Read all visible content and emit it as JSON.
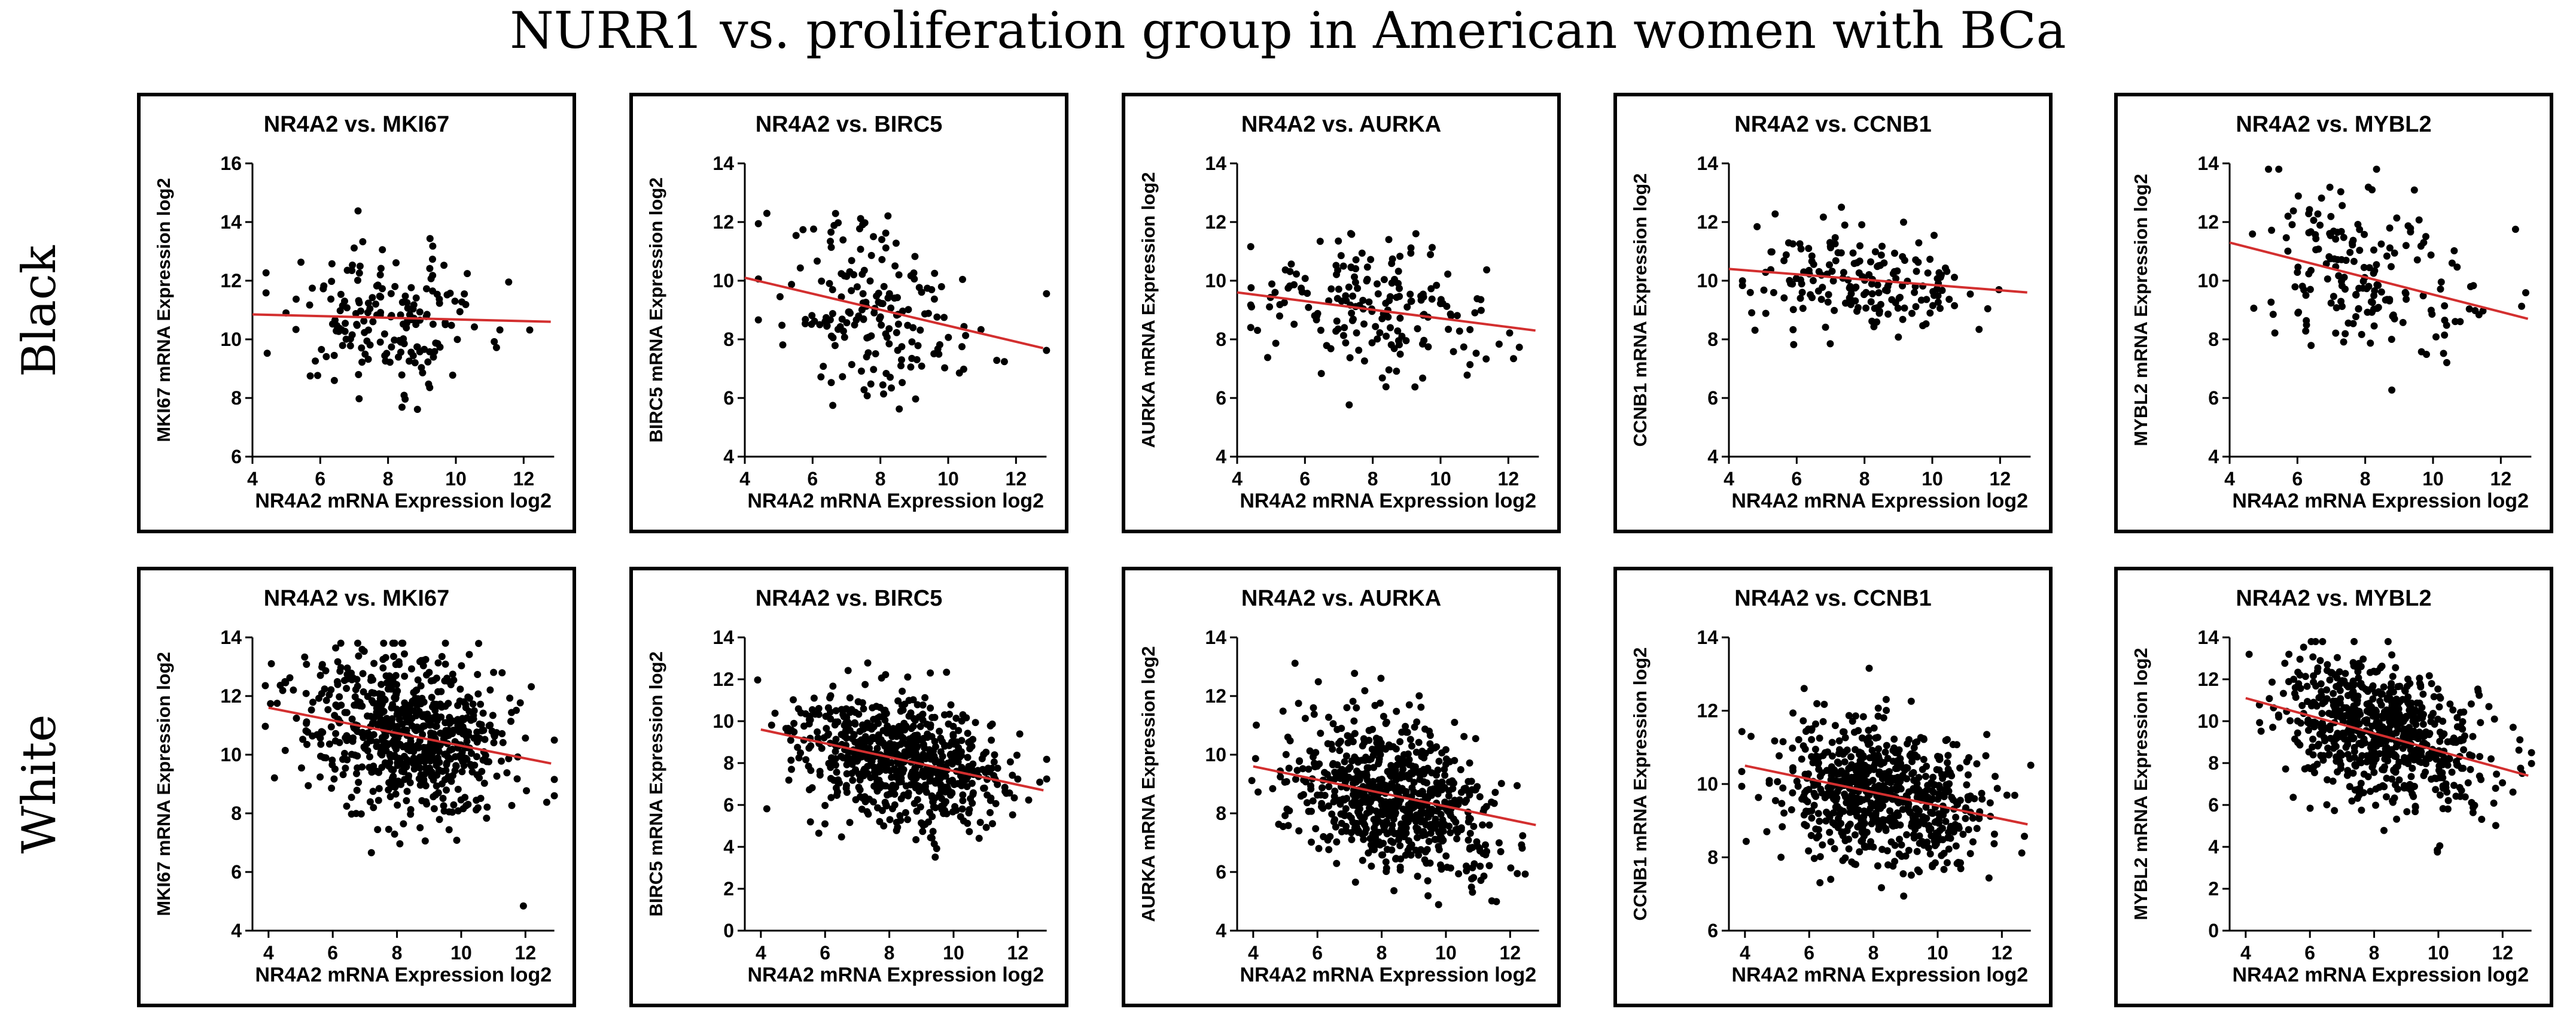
{
  "title": "NURR1 vs. proliferation group in American women with BCa",
  "row_labels": [
    "Black",
    "White"
  ],
  "colors": {
    "points": "#000000",
    "regression": "#d32f2f",
    "frame": "#000000"
  },
  "chart_data": [
    {
      "type": "scatter",
      "group": "Black",
      "title": "NR4A2 vs. MKI67",
      "xlabel": "NR4A2 mRNA Expression log2",
      "ylabel": "MKI67 mRNA Expression log2",
      "xlim": [
        4,
        13
      ],
      "ylim": [
        6,
        16
      ],
      "xticks": [
        4,
        6,
        8,
        10,
        12
      ],
      "yticks": [
        6,
        8,
        10,
        12,
        14,
        16
      ],
      "n_points": 180,
      "x_center": 8,
      "x_sd": 1.6,
      "y_sd": 1.2,
      "regression": [
        [
          4,
          10.85
        ],
        [
          12.8,
          10.6
        ]
      ]
    },
    {
      "type": "scatter",
      "group": "Black",
      "title": "NR4A2 vs. BIRC5",
      "xlabel": "NR4A2 mRNA Expression log2",
      "ylabel": "BIRC5 mRNA Expression log2",
      "xlim": [
        4,
        13
      ],
      "ylim": [
        4,
        14
      ],
      "xticks": [
        4,
        6,
        8,
        10,
        12
      ],
      "yticks": [
        4,
        6,
        8,
        10,
        12,
        14
      ],
      "n_points": 180,
      "x_center": 8,
      "x_sd": 1.6,
      "y_sd": 1.4,
      "regression": [
        [
          4,
          10.1
        ],
        [
          12.8,
          7.7
        ]
      ]
    },
    {
      "type": "scatter",
      "group": "Black",
      "title": "NR4A2 vs. AURKA",
      "xlabel": "NR4A2 mRNA Expression log2",
      "ylabel": "AURKA mRNA Expression log2",
      "xlim": [
        4,
        13
      ],
      "ylim": [
        4,
        14
      ],
      "xticks": [
        4,
        6,
        8,
        10,
        12
      ],
      "yticks": [
        4,
        6,
        8,
        10,
        12,
        14
      ],
      "n_points": 180,
      "x_center": 8,
      "x_sd": 1.6,
      "y_sd": 1.2,
      "regression": [
        [
          4,
          9.6
        ],
        [
          12.8,
          8.3
        ]
      ]
    },
    {
      "type": "scatter",
      "group": "Black",
      "title": "NR4A2 vs. CCNB1",
      "xlabel": "NR4A2 mRNA Expression log2",
      "ylabel": "CCNB1 mRNA Expression log2",
      "xlim": [
        4,
        13
      ],
      "ylim": [
        4,
        14
      ],
      "xticks": [
        4,
        6,
        8,
        10,
        12
      ],
      "yticks": [
        4,
        6,
        8,
        10,
        12,
        14
      ],
      "n_points": 180,
      "x_center": 8,
      "x_sd": 1.6,
      "y_sd": 0.9,
      "regression": [
        [
          4,
          10.4
        ],
        [
          12.8,
          9.6
        ]
      ]
    },
    {
      "type": "scatter",
      "group": "Black",
      "title": "NR4A2 vs. MYBL2",
      "xlabel": "NR4A2 mRNA Expression log2",
      "ylabel": "MYBL2 mRNA Expression log2",
      "xlim": [
        4,
        13
      ],
      "ylim": [
        4,
        14
      ],
      "xticks": [
        4,
        6,
        8,
        10,
        12
      ],
      "yticks": [
        4,
        6,
        8,
        10,
        12,
        14
      ],
      "n_points": 180,
      "x_center": 8,
      "x_sd": 1.6,
      "y_sd": 1.5,
      "regression": [
        [
          4,
          11.3
        ],
        [
          12.8,
          8.7
        ]
      ]
    },
    {
      "type": "scatter",
      "group": "White",
      "title": "NR4A2 vs. MKI67",
      "xlabel": "NR4A2 mRNA Expression log2",
      "ylabel": "MKI67 mRNA Expression log2",
      "xlim": [
        3.5,
        13
      ],
      "ylim": [
        4,
        14
      ],
      "xticks": [
        4,
        6,
        8,
        10,
        12
      ],
      "yticks": [
        4,
        6,
        8,
        10,
        12,
        14
      ],
      "n_points": 700,
      "x_center": 8.3,
      "x_sd": 1.6,
      "y_sd": 1.4,
      "regression": [
        [
          4,
          11.6
        ],
        [
          12.8,
          9.7
        ]
      ]
    },
    {
      "type": "scatter",
      "group": "White",
      "title": "NR4A2 vs. BIRC5",
      "xlabel": "NR4A2 mRNA Expression log2",
      "ylabel": "BIRC5 mRNA Expression log2",
      "xlim": [
        3.5,
        13
      ],
      "ylim": [
        0,
        14
      ],
      "xticks": [
        4,
        6,
        8,
        10,
        12
      ],
      "yticks": [
        0,
        2,
        4,
        6,
        8,
        10,
        12,
        14
      ],
      "n_points": 700,
      "x_center": 8.3,
      "x_sd": 1.6,
      "y_sd": 1.5,
      "regression": [
        [
          4,
          9.6
        ],
        [
          12.8,
          6.7
        ]
      ]
    },
    {
      "type": "scatter",
      "group": "White",
      "title": "NR4A2 vs. AURKA",
      "xlabel": "NR4A2 mRNA Expression log2",
      "ylabel": "AURKA mRNA Expression log2",
      "xlim": [
        3.5,
        13
      ],
      "ylim": [
        4,
        14
      ],
      "xticks": [
        4,
        6,
        8,
        10,
        12
      ],
      "yticks": [
        4,
        6,
        8,
        10,
        12,
        14
      ],
      "n_points": 700,
      "x_center": 8.3,
      "x_sd": 1.6,
      "y_sd": 1.3,
      "regression": [
        [
          4,
          9.6
        ],
        [
          12.8,
          7.6
        ]
      ]
    },
    {
      "type": "scatter",
      "group": "White",
      "title": "NR4A2 vs. CCNB1",
      "xlabel": "NR4A2 mRNA Expression log2",
      "ylabel": "CCNB1 mRNA Expression log2",
      "xlim": [
        3.5,
        13
      ],
      "ylim": [
        6,
        14
      ],
      "xticks": [
        4,
        6,
        8,
        10,
        12
      ],
      "yticks": [
        6,
        8,
        10,
        12,
        14
      ],
      "n_points": 700,
      "x_center": 8.3,
      "x_sd": 1.6,
      "y_sd": 1.0,
      "regression": [
        [
          4,
          10.5
        ],
        [
          12.8,
          8.9
        ]
      ]
    },
    {
      "type": "scatter",
      "group": "White",
      "title": "NR4A2 vs. MYBL2",
      "xlabel": "NR4A2 mRNA Expression log2",
      "ylabel": "MYBL2 mRNA Expression log2",
      "xlim": [
        3.5,
        13
      ],
      "ylim": [
        0,
        14
      ],
      "xticks": [
        4,
        6,
        8,
        10,
        12
      ],
      "yticks": [
        0,
        2,
        4,
        6,
        8,
        10,
        12,
        14
      ],
      "n_points": 700,
      "x_center": 8.3,
      "x_sd": 1.6,
      "y_sd": 1.6,
      "regression": [
        [
          4,
          11.1
        ],
        [
          12.8,
          7.4
        ]
      ]
    }
  ]
}
